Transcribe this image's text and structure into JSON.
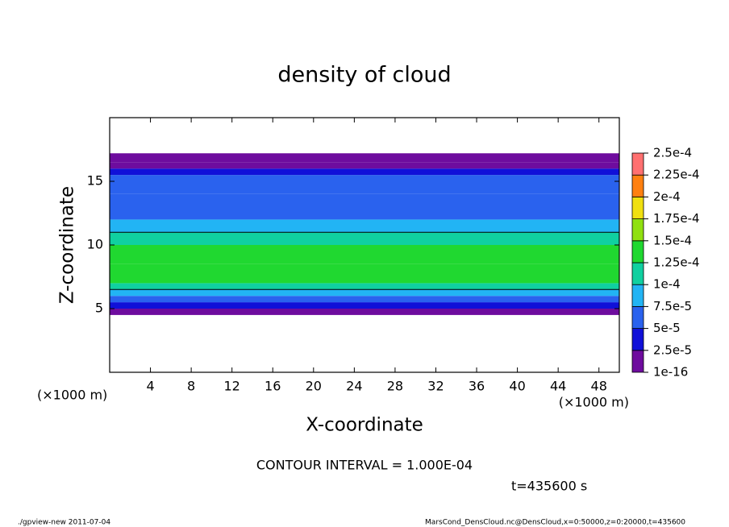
{
  "chart_data": {
    "type": "contour",
    "title": "density of cloud",
    "x_label": "X-coordinate",
    "y_label": "Z-coordinate",
    "x_unit": "(×1000 m)",
    "y_unit": "(×1000 m)",
    "xlim": [
      0,
      50
    ],
    "xticks": [
      4,
      8,
      12,
      16,
      20,
      24,
      28,
      32,
      36,
      40,
      44,
      48
    ],
    "ylim": [
      0,
      20
    ],
    "yticks": [
      5,
      10,
      15
    ],
    "z_edges": [
      4.5,
      5,
      5.5,
      6,
      6.5,
      7,
      8.5,
      10,
      11,
      12,
      14,
      15.5,
      16,
      16.5,
      17.2
    ],
    "values": [
      1e-05,
      3e-05,
      6e-05,
      9e-05,
      0.00012,
      0.00014,
      0.00013,
      0.00011,
      8e-05,
      6e-05,
      5e-05,
      3e-05,
      2e-05,
      1e-05
    ],
    "levels": [
      {
        "value": 1e-16,
        "label": "1e-16"
      },
      {
        "value": 2.5e-05,
        "label": "2.5e-5"
      },
      {
        "value": 5e-05,
        "label": "5e-5"
      },
      {
        "value": 7.5e-05,
        "label": "7.5e-5"
      },
      {
        "value": 0.0001,
        "label": "1e-4"
      },
      {
        "value": 0.000125,
        "label": "1.25e-4"
      },
      {
        "value": 0.00015,
        "label": "1.5e-4"
      },
      {
        "value": 0.000175,
        "label": "1.75e-4"
      },
      {
        "value": 0.0002,
        "label": "2e-4"
      },
      {
        "value": 0.000225,
        "label": "2.25e-4"
      },
      {
        "value": 0.00025,
        "label": "2.5e-4"
      }
    ],
    "colors": [
      "#6e0c9e",
      "#1010d8",
      "#2a62ee",
      "#22b4f4",
      "#10d0a0",
      "#20d830",
      "#90e010",
      "#f0e010",
      "#ff8010",
      "#ff7070"
    ],
    "contour_interval_label": "CONTOUR INTERVAL = 1.000E-04",
    "time_label": "t=435600 s",
    "footer_left": "./gpview-new  2011-07-04",
    "footer_right": "MarsCond_DensCloud.nc@DensCloud,x=0:50000,z=0:20000,t=435600"
  }
}
